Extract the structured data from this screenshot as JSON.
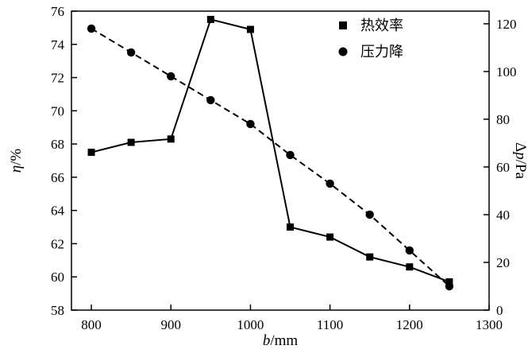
{
  "figure": {
    "background": "#ffffff",
    "ink_color": "#000000"
  },
  "chart_data": {
    "type": "line",
    "x": [
      800,
      850,
      900,
      950,
      1000,
      1050,
      1100,
      1150,
      1200,
      1250
    ],
    "series": [
      {
        "key": "thermal-efficiency",
        "name": "热效率",
        "axis": "left",
        "marker": "square",
        "line": "solid",
        "values": [
          67.5,
          68.1,
          68.3,
          75.5,
          74.9,
          63.0,
          62.4,
          61.2,
          60.6,
          59.7
        ]
      },
      {
        "key": "pressure-drop",
        "name": "压力降",
        "axis": "right",
        "marker": "circle",
        "line": "dashed",
        "values": [
          118,
          108,
          98,
          88,
          78,
          65,
          53,
          40,
          25,
          10
        ]
      }
    ],
    "xlabel": "b/mm",
    "ylabel_left": "η/%",
    "ylabel_right": "Δp/Pa",
    "xlim": [
      775,
      1300
    ],
    "xticks": [
      800,
      900,
      1000,
      1100,
      1200,
      1300
    ],
    "ylim_left": [
      58,
      76
    ],
    "yticks_left": [
      58,
      60,
      62,
      64,
      66,
      68,
      70,
      72,
      74,
      76
    ],
    "ylim_right": [
      0,
      125.3
    ],
    "yticks_right": [
      0,
      20,
      40,
      60,
      80,
      100,
      120
    ],
    "grid": false,
    "legend_position": "top-right-inside",
    "legend": [
      "热效率",
      "压力降"
    ]
  }
}
